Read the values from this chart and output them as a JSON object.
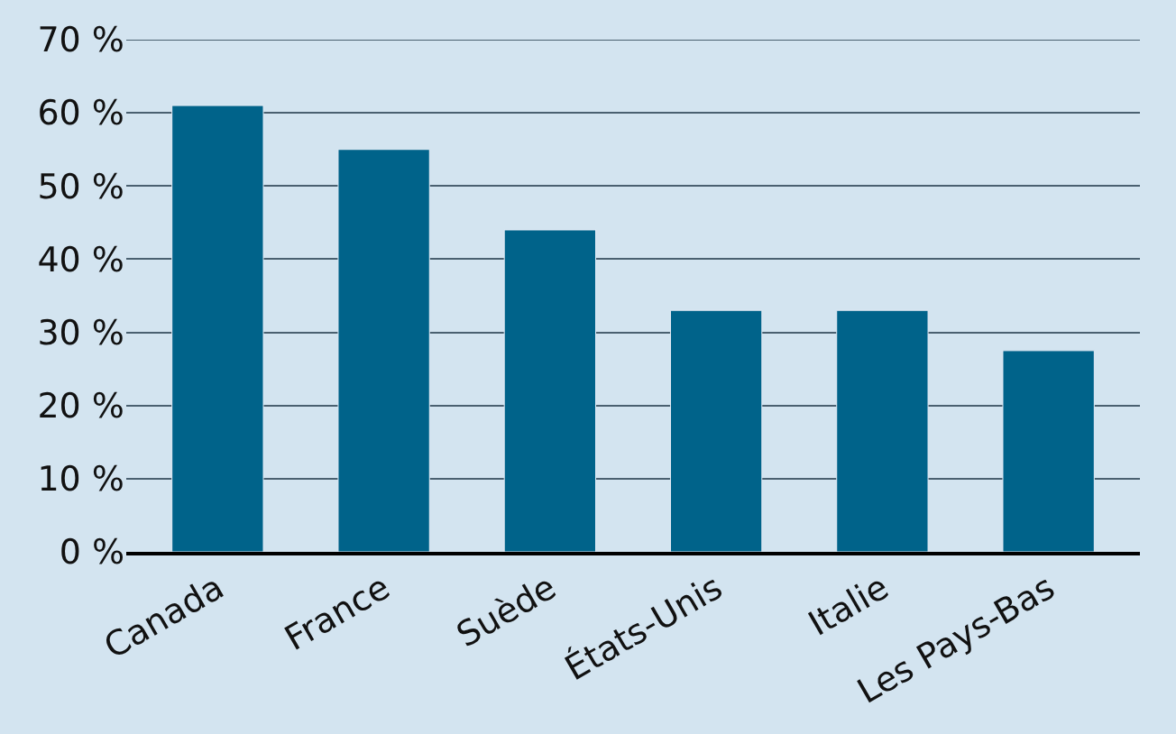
{
  "chart_data": {
    "type": "bar",
    "categories": [
      "Canada",
      "France",
      "Suède",
      "États-Unis",
      "Italie",
      "Les Pays-Bas"
    ],
    "values": [
      61,
      55,
      44,
      33,
      33,
      27.5
    ],
    "color": "#00638a",
    "ylim": [
      0,
      70
    ],
    "yticks": [
      {
        "value": 0,
        "label": "0 %"
      },
      {
        "value": 10,
        "label": "10 %"
      },
      {
        "value": 20,
        "label": "20 %"
      },
      {
        "value": 30,
        "label": "30 %"
      },
      {
        "value": 40,
        "label": "40 %"
      },
      {
        "value": 50,
        "label": "50 %"
      },
      {
        "value": 60,
        "label": "60 %"
      },
      {
        "value": 70,
        "label": "70 %"
      }
    ],
    "grid": "y"
  }
}
